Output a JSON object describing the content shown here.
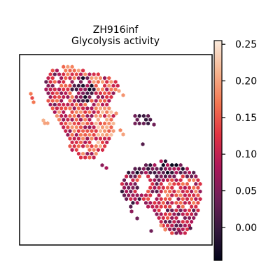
{
  "chart_data": {
    "type": "scatter",
    "title_lines": [
      "ZH916inf",
      "Glycolysis activity"
    ],
    "xlabel": "",
    "ylabel": "",
    "axes_frame": true,
    "axis_ticks": false,
    "grid": false,
    "legend": "none",
    "point_shape": "hexagon",
    "colorbar": {
      "position": "right",
      "min": -0.045,
      "max": 0.255,
      "ticks": [
        0.25,
        0.2,
        0.15,
        0.1,
        0.05,
        0.0
      ],
      "tick_labels": [
        "0.25",
        "0.20",
        "0.15",
        "0.10",
        "0.05",
        "0.00"
      ],
      "colormap": "rocket",
      "colormap_stops": [
        "#03051a",
        "#36193e",
        "#701f57",
        "#ad1759",
        "#e13342",
        "#f37651",
        "#f6b48f",
        "#faebdd"
      ]
    },
    "regions": [
      {
        "name": "upper-left tissue section",
        "x_range": [
          40,
          185
        ],
        "y_range": [
          95,
          245
        ],
        "typical_value": 0.12
      },
      {
        "name": "lower-right tissue section",
        "x_range": [
          170,
          290
        ],
        "y_range": [
          228,
          338
        ],
        "typical_value": 0.09
      }
    ]
  }
}
